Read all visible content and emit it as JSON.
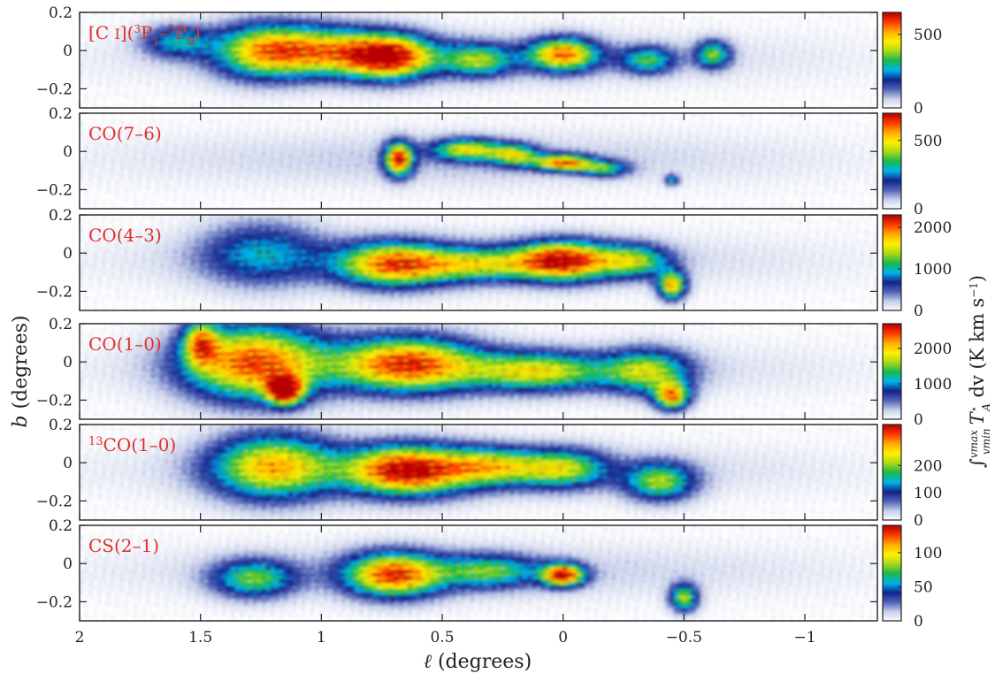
{
  "chart_data": {
    "type": "heatmap",
    "x_axis": {
      "label": "ℓ (degrees)",
      "range": [
        2,
        -1.3
      ],
      "ticks": [
        2,
        1.5,
        1,
        0.5,
        0,
        -0.5,
        -1
      ],
      "tick_labels": [
        "2",
        "1.5",
        "1",
        "0.5",
        "0",
        "−0.5",
        "−1"
      ]
    },
    "y_axis": {
      "label": "b (degrees)",
      "range": [
        -0.3,
        0.2
      ],
      "ticks": [
        -0.2,
        0,
        0.2
      ],
      "tick_labels": [
        "−0.2",
        "0",
        "0.2"
      ]
    },
    "colorbar": {
      "label": "∫ T*A dv (K km s⁻¹)",
      "label_parts": {
        "integral": "∫",
        "upper": "vmax",
        "lower": "vmin",
        "body": "T",
        "body_sup": "⋆",
        "body_sub": "A",
        "rest": "dv (K km s",
        "exp": "−1",
        "close": ")"
      },
      "colors": [
        "#ffffff",
        "#c8d0ea",
        "#5064b8",
        "#12228a",
        "#00b4ee",
        "#18b84c",
        "#a8d818",
        "#fff000",
        "#ffb000",
        "#ff3c00",
        "#b80000"
      ]
    },
    "panels": [
      {
        "name": "[C I](3P1–3P0)",
        "label_parts": {
          "pre": "[C ",
          "ion": "I",
          "mid1": "](",
          "sup1": "3",
          "mid2": "P",
          "sub1": "1",
          "mid3": "–",
          "sup2": "3",
          "mid4": "P",
          "sub2": "0",
          "post": ")"
        },
        "cbar_range": [
          0,
          650
        ],
        "cbar_ticks": [
          0,
          500
        ],
        "clumps": [
          {
            "l": 0.72,
            "b": -0.03,
            "sl": 0.13,
            "sb": 0.08,
            "a": 0.95
          },
          {
            "l": 1.0,
            "b": 0.0,
            "sl": 0.16,
            "sb": 0.09,
            "a": 0.6
          },
          {
            "l": 1.25,
            "b": 0.0,
            "sl": 0.14,
            "sb": 0.1,
            "a": 0.62
          },
          {
            "l": 0.0,
            "b": -0.02,
            "sl": 0.1,
            "sb": 0.06,
            "a": 0.78
          },
          {
            "l": 0.35,
            "b": -0.05,
            "sl": 0.1,
            "sb": 0.06,
            "a": 0.5
          },
          {
            "l": -0.35,
            "b": -0.05,
            "sl": 0.08,
            "sb": 0.05,
            "a": 0.45
          },
          {
            "l": -0.62,
            "b": -0.02,
            "sl": 0.05,
            "sb": 0.05,
            "a": 0.52
          },
          {
            "l": 1.6,
            "b": 0.05,
            "sl": 0.1,
            "sb": 0.06,
            "a": 0.38
          }
        ]
      },
      {
        "name": "CO(7–6)",
        "label_parts": {
          "text": "CO(7–6)"
        },
        "cbar_range": [
          0,
          700
        ],
        "cbar_ticks": [
          0,
          500
        ],
        "clumps": [
          {
            "l": 0.68,
            "b": -0.04,
            "sl": 0.04,
            "sb": 0.06,
            "a": 0.9
          },
          {
            "l": 0.4,
            "b": 0.01,
            "sl": 0.1,
            "sb": 0.04,
            "a": 0.6
          },
          {
            "l": 0.2,
            "b": -0.02,
            "sl": 0.07,
            "sb": 0.04,
            "a": 0.55
          },
          {
            "l": 0.0,
            "b": -0.06,
            "sl": 0.08,
            "sb": 0.03,
            "a": 0.8
          },
          {
            "l": -0.17,
            "b": -0.09,
            "sl": 0.07,
            "sb": 0.03,
            "a": 0.45
          },
          {
            "l": -0.45,
            "b": -0.15,
            "sl": 0.02,
            "sb": 0.02,
            "a": 0.4
          }
        ]
      },
      {
        "name": "CO(4–3)",
        "label_parts": {
          "text": "CO(4–3)"
        },
        "cbar_range": [
          0,
          2300
        ],
        "cbar_ticks": [
          0,
          1000,
          2000
        ],
        "clumps": [
          {
            "l": 0.7,
            "b": -0.06,
            "sl": 0.16,
            "sb": 0.08,
            "a": 0.8
          },
          {
            "l": 0.0,
            "b": -0.04,
            "sl": 0.14,
            "sb": 0.07,
            "a": 0.95
          },
          {
            "l": 0.35,
            "b": -0.06,
            "sl": 0.16,
            "sb": 0.06,
            "a": 0.5
          },
          {
            "l": -0.45,
            "b": -0.17,
            "sl": 0.04,
            "sb": 0.05,
            "a": 0.75
          },
          {
            "l": -0.3,
            "b": -0.04,
            "sl": 0.1,
            "sb": 0.06,
            "a": 0.5
          },
          {
            "l": 1.25,
            "b": 0.0,
            "sl": 0.18,
            "sb": 0.12,
            "a": 0.35
          }
        ]
      },
      {
        "name": "CO(1–0)",
        "label_parts": {
          "text": "CO(1–0)"
        },
        "cbar_range": [
          0,
          2700
        ],
        "cbar_ticks": [
          0,
          1000,
          2000
        ],
        "clumps": [
          {
            "l": 1.28,
            "b": 0.0,
            "sl": 0.2,
            "sb": 0.14,
            "a": 0.85
          },
          {
            "l": 1.15,
            "b": -0.15,
            "sl": 0.05,
            "sb": 0.05,
            "a": 0.95
          },
          {
            "l": 0.65,
            "b": -0.01,
            "sl": 0.2,
            "sb": 0.1,
            "a": 0.85
          },
          {
            "l": 0.1,
            "b": -0.05,
            "sl": 0.2,
            "sb": 0.07,
            "a": 0.6
          },
          {
            "l": -0.45,
            "b": -0.18,
            "sl": 0.05,
            "sb": 0.05,
            "a": 0.75
          },
          {
            "l": -0.35,
            "b": -0.05,
            "sl": 0.12,
            "sb": 0.08,
            "a": 0.55
          },
          {
            "l": 1.5,
            "b": 0.1,
            "sl": 0.05,
            "sb": 0.08,
            "a": 0.6
          }
        ]
      },
      {
        "name": "13CO(1–0)",
        "label_parts": {
          "sup": "13",
          "text": "CO(1–0)"
        },
        "cbar_range": [
          0,
          350
        ],
        "cbar_ticks": [
          0,
          100,
          200
        ],
        "clumps": [
          {
            "l": 0.65,
            "b": -0.04,
            "sl": 0.17,
            "sb": 0.09,
            "a": 0.95
          },
          {
            "l": 0.3,
            "b": -0.02,
            "sl": 0.14,
            "sb": 0.07,
            "a": 0.55
          },
          {
            "l": 0.0,
            "b": -0.03,
            "sl": 0.13,
            "sb": 0.07,
            "a": 0.55
          },
          {
            "l": -0.4,
            "b": -0.1,
            "sl": 0.1,
            "sb": 0.07,
            "a": 0.55
          },
          {
            "l": 1.2,
            "b": -0.02,
            "sl": 0.18,
            "sb": 0.12,
            "a": 0.72
          }
        ]
      },
      {
        "name": "CS(2–1)",
        "label_parts": {
          "text": "CS(2–1)"
        },
        "cbar_range": [
          0,
          140
        ],
        "cbar_ticks": [
          0,
          50,
          100
        ],
        "clumps": [
          {
            "l": 0.7,
            "b": -0.06,
            "sl": 0.14,
            "sb": 0.08,
            "a": 0.85
          },
          {
            "l": 0.0,
            "b": -0.06,
            "sl": 0.06,
            "sb": 0.04,
            "a": 0.95
          },
          {
            "l": 1.28,
            "b": -0.08,
            "sl": 0.12,
            "sb": 0.07,
            "a": 0.5
          },
          {
            "l": -0.5,
            "b": -0.18,
            "sl": 0.04,
            "sb": 0.05,
            "a": 0.6
          },
          {
            "l": 0.3,
            "b": -0.04,
            "sl": 0.14,
            "sb": 0.06,
            "a": 0.45
          }
        ]
      }
    ]
  }
}
